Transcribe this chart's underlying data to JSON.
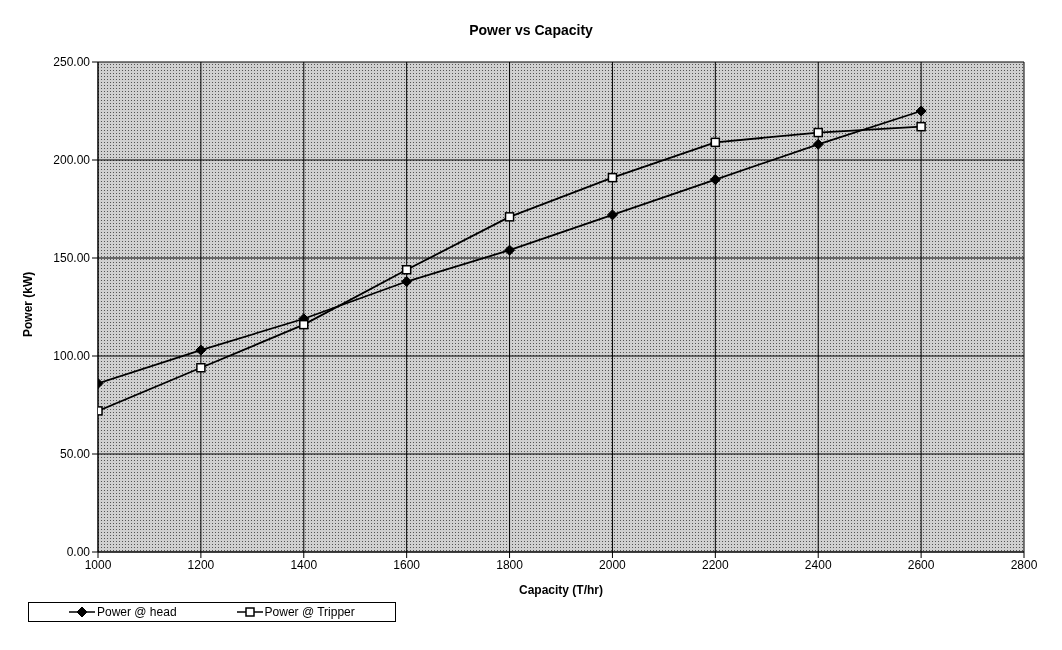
{
  "chart_data": {
    "type": "line",
    "title": "Power vs Capacity",
    "xlabel": "Capacity (T/hr)",
    "ylabel": "Power (kW)",
    "x": [
      1000,
      1200,
      1400,
      1600,
      1800,
      2000,
      2200,
      2400,
      2600
    ],
    "series": [
      {
        "name": "Power @ head",
        "color": "#000000",
        "marker": "diamond",
        "values": [
          86,
          103,
          119,
          138,
          154,
          172,
          190,
          208,
          225
        ]
      },
      {
        "name": "Power @ Tripper",
        "color": "#000000",
        "marker": "square",
        "values": [
          72,
          94,
          116,
          144,
          171,
          191,
          209,
          214,
          217
        ]
      }
    ],
    "xlim": [
      1000,
      2800
    ],
    "xticks": [
      1000,
      1200,
      1400,
      1600,
      1800,
      2000,
      2200,
      2400,
      2600,
      2800
    ],
    "ylim": [
      0,
      250
    ],
    "yticks": [
      {
        "value": 0,
        "label": "0.00"
      },
      {
        "value": 50,
        "label": "50.00"
      },
      {
        "value": 100,
        "label": "100.00"
      },
      {
        "value": 150,
        "label": "150.00"
      },
      {
        "value": 200,
        "label": "200.00"
      },
      {
        "value": 250,
        "label": "250.00"
      }
    ],
    "grid": true,
    "legend": "bottom",
    "line_style": "solid"
  }
}
